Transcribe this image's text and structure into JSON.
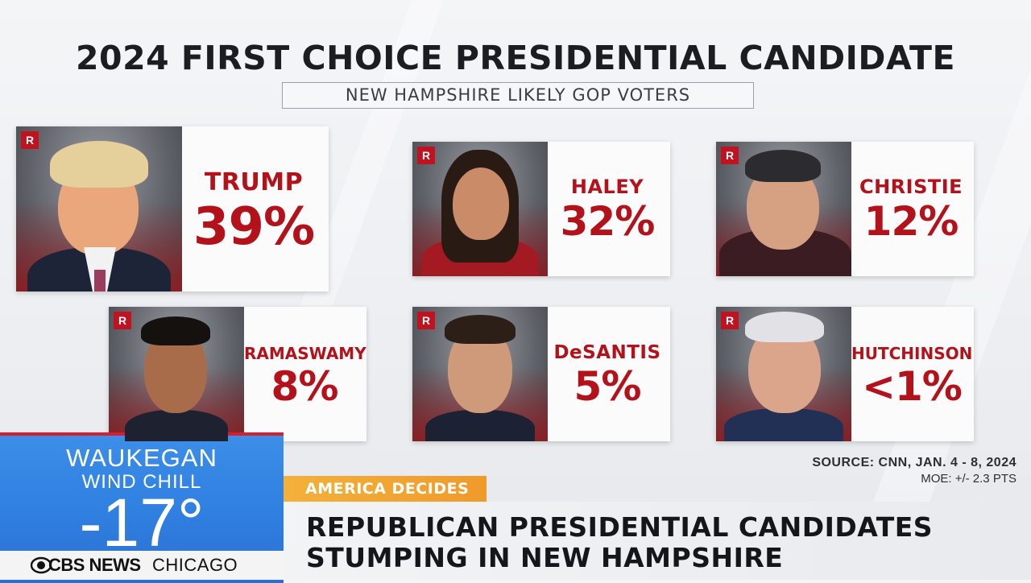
{
  "title": "2024 FIRST CHOICE PRESIDENTIAL CANDIDATE",
  "subtitle": "NEW HAMPSHIRE LIKELY GOP VOTERS",
  "party_badge": "R",
  "colors": {
    "accent_red": "#b4121b",
    "badge_red": "#c1121f",
    "weather_blue": "#2f7fe0",
    "tag_orange": "#f09a2a"
  },
  "candidates": [
    {
      "name": "TRUMP",
      "percent": "39%",
      "value": 39
    },
    {
      "name": "HALEY",
      "percent": "32%",
      "value": 32
    },
    {
      "name": "CHRISTIE",
      "percent": "12%",
      "value": 12
    },
    {
      "name": "RAMASWAMY",
      "percent": "8%",
      "value": 8
    },
    {
      "name": "DeSANTIS",
      "percent": "5%",
      "value": 5
    },
    {
      "name": "HUTCHINSON",
      "percent": "<1%",
      "value": 1
    }
  ],
  "source": {
    "line1": "SOURCE: CNN, JAN. 4 - 8, 2024",
    "line2": "MOE: +/- 2.3 PTS"
  },
  "weather": {
    "city": "WAUKEGAN",
    "label": "WIND CHILL",
    "temp": "-17°"
  },
  "brand": {
    "network": "CBS NEWS",
    "station": "CHICAGO",
    "logo_icon": "cbs-eye-icon"
  },
  "lower_third": {
    "tag": "AMERICA DECIDES",
    "line1": "REPUBLICAN PRESIDENTIAL CANDIDATES",
    "line2": "STUMPING IN NEW HAMPSHIRE"
  }
}
